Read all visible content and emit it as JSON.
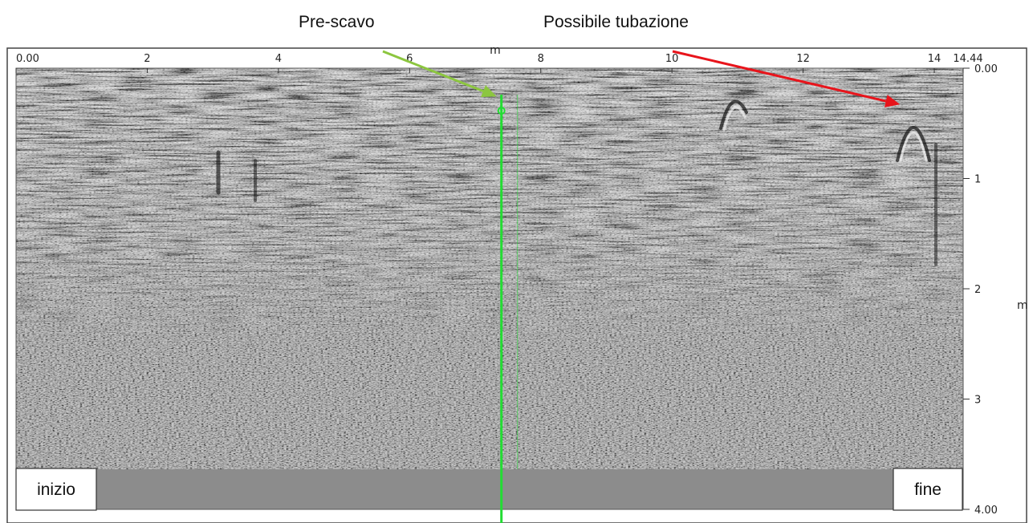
{
  "annotations": {
    "prescavo_label": "Pre-scavo",
    "tubazione_label": "Possibile tubazione",
    "prescavo_arrow_color": "#8cc63f",
    "tubazione_arrow_color": "#e8141b",
    "marker_line_color": "#22dd33"
  },
  "axes": {
    "x_ticks": [
      "0.00",
      "2",
      "4",
      "6",
      "8",
      "10",
      "12",
      "14",
      "14.44"
    ],
    "x_unit": "m",
    "y_ticks": [
      "0.00",
      "1",
      "2",
      "3",
      "4.00"
    ],
    "y_unit": "m"
  },
  "markers": {
    "start_label": "inizio",
    "end_label": "fine"
  },
  "profile": {
    "length_m": 14.44,
    "depth_m": 4.0,
    "prescavo_position_m": 7.4,
    "prescavo_depth_m": 0.22,
    "tubazione_position_m": 13.55,
    "tubazione_depth_m": 0.35
  }
}
